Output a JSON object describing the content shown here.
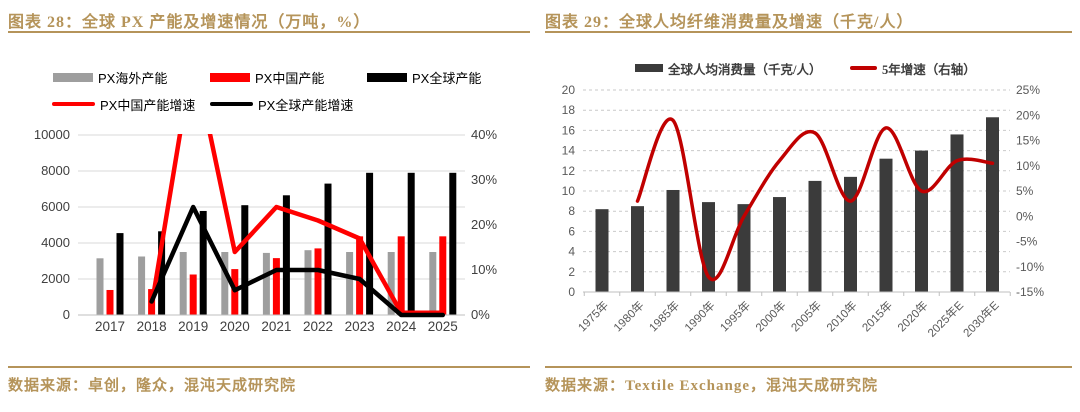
{
  "colors": {
    "accent_gold": "#B5945A",
    "grid_solid": "#D9D9D9",
    "grid_dashed": "#C9C9C9",
    "axis_line": "#BFBFBF",
    "axis_text_left_chart": "#404040",
    "axis_text_right_chart": "#595959"
  },
  "figures": [
    {
      "title": "图表 28：全球 PX 产能及增速情况（万吨，%）",
      "source": "数据来源：卓创，隆众，混沌天成研究院"
    },
    {
      "title": "图表 29：全球人均纤维消费量及增速（千克/人）",
      "source": "数据来源：Textile Exchange，混沌天成研究院"
    }
  ],
  "chart_data": [
    {
      "type": "bar",
      "title": "全球PX产能及增速情况（万吨，%）",
      "categories": [
        "2017",
        "2018",
        "2019",
        "2020",
        "2021",
        "2022",
        "2023",
        "2024",
        "2025"
      ],
      "bar_series": [
        {
          "name": "PX海外产能",
          "color": "#9E9E9E",
          "axis": "left",
          "values": [
            3150,
            3250,
            3500,
            3500,
            3450,
            3600,
            3500,
            3500,
            3500
          ]
        },
        {
          "name": "PX中国产能",
          "color": "#FF0000",
          "axis": "left",
          "values": [
            1390,
            1440,
            2250,
            2550,
            3160,
            3700,
            4370,
            4370,
            4370
          ]
        },
        {
          "name": "PX全球产能",
          "color": "#000000",
          "axis": "left",
          "values": [
            4550,
            4650,
            5780,
            6100,
            6650,
            7300,
            7900,
            7900,
            7900
          ]
        }
      ],
      "line_series": [
        {
          "name": "PX中国产能增速",
          "color": "#FF0000",
          "axis": "right",
          "smooth": false,
          "values": [
            null,
            2,
            58,
            14,
            24,
            21,
            17,
            0.5,
            0.5
          ]
        },
        {
          "name": "PX全球产能增速",
          "color": "#000000",
          "axis": "right",
          "smooth": false,
          "values": [
            null,
            3,
            24,
            5.5,
            10,
            10,
            8,
            0,
            0
          ]
        }
      ],
      "y_left": {
        "min": 0,
        "max": 10000,
        "step": 2000,
        "labels": [
          "0",
          "2000",
          "4000",
          "6000",
          "8000",
          "10000"
        ]
      },
      "y_right": {
        "min": 0,
        "max": 40,
        "step": 10,
        "labels": [
          "0%",
          "10%",
          "20%",
          "30%",
          "40%"
        ]
      },
      "grid": "solid",
      "legend_position": "top",
      "x_label_rotation": 0
    },
    {
      "type": "bar",
      "title": "全球人均纤维消费量及增速（千克/人）",
      "categories": [
        "1975年",
        "1980年",
        "1985年",
        "1990年",
        "1995年",
        "2000年",
        "2005年",
        "2010年",
        "2015年",
        "2020年",
        "2025年E",
        "2030年E"
      ],
      "bar_series": [
        {
          "name": "全球人均消费量（千克/人）",
          "color": "#3B3B3B",
          "axis": "left",
          "values": [
            8.2,
            8.5,
            10.1,
            8.9,
            8.7,
            9.4,
            11.0,
            11.4,
            13.2,
            14.0,
            15.6,
            17.3
          ]
        }
      ],
      "line_series": [
        {
          "name": "5年增速（右轴）",
          "color": "#C00000",
          "axis": "right",
          "smooth": true,
          "values": [
            null,
            3,
            19,
            -12,
            0,
            11,
            16.5,
            3,
            17.5,
            5,
            11,
            10.5
          ]
        }
      ],
      "y_left": {
        "min": 0,
        "max": 20,
        "step": 2,
        "labels": [
          "0",
          "2",
          "4",
          "6",
          "8",
          "10",
          "12",
          "14",
          "16",
          "18",
          "20"
        ]
      },
      "y_right": {
        "min": -15,
        "max": 25,
        "step": 5,
        "labels": [
          "-15%",
          "-10%",
          "-5%",
          "0%",
          "5%",
          "10%",
          "15%",
          "20%",
          "25%"
        ]
      },
      "grid": "dashed",
      "legend_position": "top",
      "x_label_rotation": -45
    }
  ]
}
